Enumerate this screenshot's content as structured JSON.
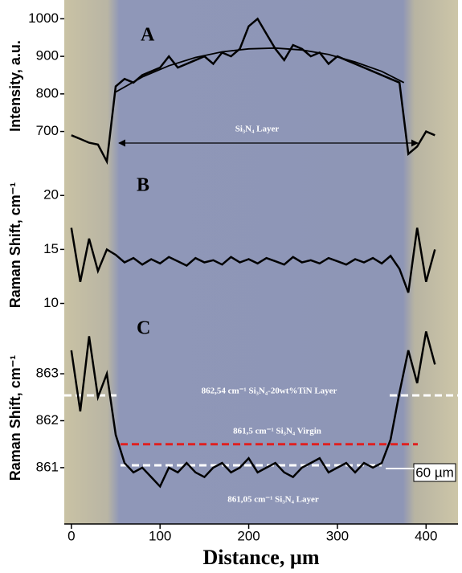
{
  "chart_data": [
    {
      "type": "line",
      "panel_label": "A",
      "ylabel": "Intensity, a.u.",
      "xlim": [
        -8,
        436
      ],
      "ylim": [
        590,
        1050
      ],
      "yticks": [
        700,
        800,
        900,
        1000
      ],
      "series": [
        {
          "color": "#000000",
          "x": [
            0,
            10,
            20,
            30,
            40,
            50,
            60,
            70,
            80,
            90,
            100,
            110,
            120,
            130,
            140,
            150,
            160,
            170,
            180,
            190,
            200,
            210,
            220,
            230,
            240,
            250,
            260,
            270,
            280,
            290,
            300,
            310,
            320,
            330,
            340,
            350,
            360,
            370,
            380,
            390,
            400,
            410
          ],
          "values": [
            690,
            680,
            670,
            665,
            620,
            820,
            840,
            830,
            850,
            860,
            870,
            900,
            870,
            880,
            890,
            900,
            880,
            910,
            900,
            920,
            980,
            1000,
            960,
            920,
            890,
            930,
            920,
            900,
            910,
            880,
            900,
            890,
            880,
            870,
            860,
            850,
            840,
            830,
            640,
            660,
            700,
            690
          ]
        },
        {
          "color": "#000000",
          "x": [
            50,
            80,
            110,
            140,
            170,
            200,
            230,
            260,
            290,
            320,
            350,
            375
          ],
          "values": [
            805,
            845,
            875,
            897,
            912,
            920,
            922,
            917,
            905,
            885,
            860,
            830
          ]
        }
      ],
      "annotation": "Si₃N₄ Layer"
    },
    {
      "type": "line",
      "panel_label": "B",
      "ylabel": "Raman Shift, cm⁻¹",
      "xlim": [
        -8,
        436
      ],
      "ylim": [
        8.7,
        22.1
      ],
      "yticks": [
        10,
        15,
        20
      ],
      "series": [
        {
          "color": "#000000",
          "x": [
            0,
            10,
            20,
            30,
            40,
            50,
            60,
            70,
            80,
            90,
            100,
            110,
            120,
            130,
            140,
            150,
            160,
            170,
            180,
            190,
            200,
            210,
            220,
            230,
            240,
            250,
            260,
            270,
            280,
            290,
            300,
            310,
            320,
            330,
            340,
            350,
            360,
            370,
            380,
            390,
            400,
            410
          ],
          "values": [
            17,
            12,
            16,
            13,
            15,
            14.5,
            13.8,
            14.2,
            13.6,
            14.1,
            13.7,
            14.3,
            13.9,
            13.5,
            14.2,
            13.8,
            14,
            13.6,
            14.3,
            13.8,
            14.1,
            13.7,
            14.2,
            13.9,
            13.6,
            14.3,
            13.8,
            14,
            13.7,
            14.2,
            13.9,
            13.6,
            14.1,
            13.8,
            14.2,
            13.7,
            14.4,
            13.2,
            11,
            17,
            12,
            15
          ]
        }
      ]
    },
    {
      "type": "line",
      "panel_label": "C",
      "ylabel": "Raman Shift, cm⁻¹",
      "xlim": [
        -8,
        436
      ],
      "ylim": [
        859.8,
        864.2
      ],
      "yticks": [
        861,
        862,
        863
      ],
      "xticks": [
        0,
        100,
        200,
        300,
        400
      ],
      "xlabel": "Distance, µm",
      "series": [
        {
          "color": "#000000",
          "x": [
            0,
            10,
            20,
            30,
            40,
            50,
            60,
            70,
            80,
            90,
            100,
            110,
            120,
            130,
            140,
            150,
            160,
            170,
            180,
            190,
            200,
            210,
            220,
            230,
            240,
            250,
            260,
            270,
            280,
            290,
            300,
            310,
            320,
            330,
            340,
            350,
            360,
            370,
            380,
            390,
            400,
            410
          ],
          "values": [
            863.5,
            862.2,
            863.8,
            862.5,
            863,
            861.7,
            861.1,
            860.9,
            861,
            860.8,
            860.6,
            861,
            860.9,
            861.1,
            860.9,
            860.8,
            861,
            861.1,
            860.9,
            861,
            861.2,
            860.9,
            861,
            861.1,
            860.9,
            860.8,
            861,
            861.1,
            861.2,
            860.9,
            861,
            861.1,
            860.9,
            861.1,
            861,
            861.1,
            861.6,
            862.6,
            863.5,
            862.8,
            863.9,
            863.2
          ]
        }
      ],
      "ref_lines": [
        {
          "value": 862.54,
          "label": "862,54 cm⁻¹ Si₃N₄-20wt%TiN Layer",
          "color": "#ffffff"
        },
        {
          "value": 861.5,
          "label": "861,5 cm⁻¹ Si₃N₄ Virgin",
          "color": "#e02020"
        },
        {
          "value": 861.05,
          "label": "861,05 cm⁻¹ Si₃N₄ Layer",
          "color": "#ffffff"
        }
      ],
      "scale_bar": "60 µm"
    }
  ]
}
